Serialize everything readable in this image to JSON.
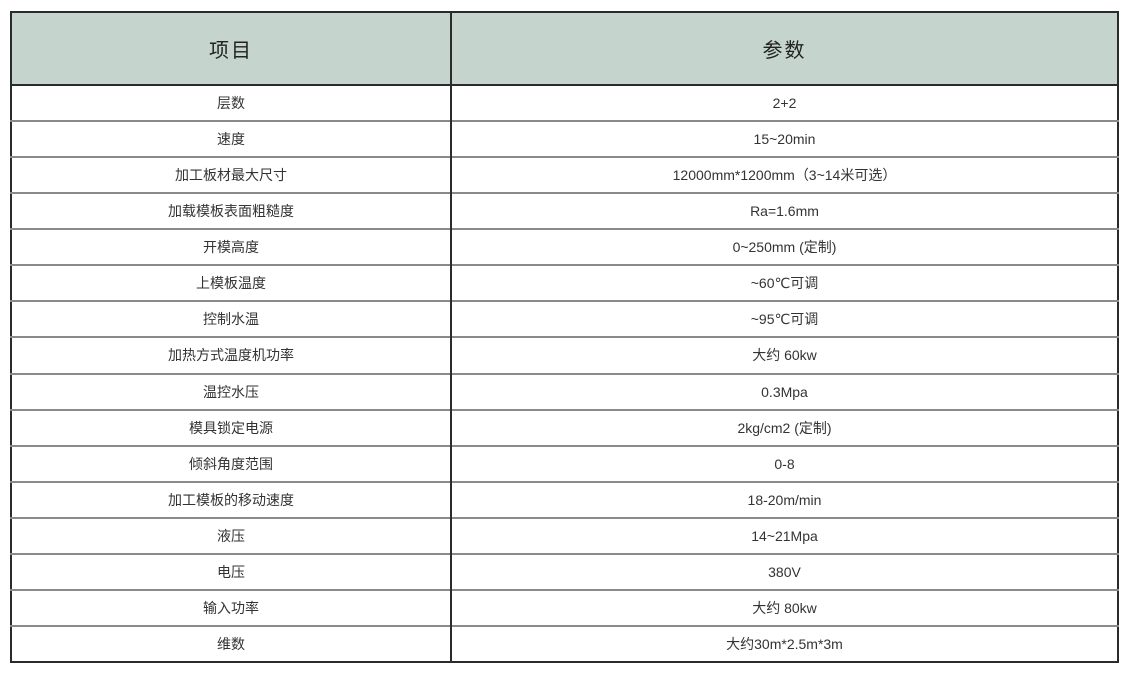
{
  "colors": {
    "header_bg": "#c5d4cc",
    "border_dark": "#2b2b2b",
    "row_separator": "#8a8a8a",
    "text": "#333333"
  },
  "table": {
    "header": {
      "item_label": "项目",
      "param_label": "参数"
    },
    "rows": [
      {
        "item": "层数",
        "value": "2+2"
      },
      {
        "item": "速度",
        "value": "15~20min"
      },
      {
        "item": "加工板材最大尺寸",
        "value": "12000mm*1200mm（3~14米可选）"
      },
      {
        "item": "加载模板表面粗糙度",
        "value": "Ra=1.6mm"
      },
      {
        "item": "开模高度",
        "value": "0~250mm (定制)"
      },
      {
        "item": "上模板温度",
        "value": "~60℃可调"
      },
      {
        "item": "控制水温",
        "value": "~95℃可调"
      },
      {
        "item": "加热方式温度机功率",
        "value": "大约 60kw"
      },
      {
        "item": "温控水压",
        "value": "0.3Mpa"
      },
      {
        "item": "模具锁定电源",
        "value": "2kg/cm2 (定制)"
      },
      {
        "item": "倾斜角度范围",
        "value": "0-8"
      },
      {
        "item": "加工模板的移动速度",
        "value": "18-20m/min"
      },
      {
        "item": "液压",
        "value": "14~21Mpa"
      },
      {
        "item": "电压",
        "value": "380V"
      },
      {
        "item": "输入功率",
        "value": "大约 80kw"
      },
      {
        "item": "维数",
        "value": "大约30m*2.5m*3m"
      }
    ]
  }
}
